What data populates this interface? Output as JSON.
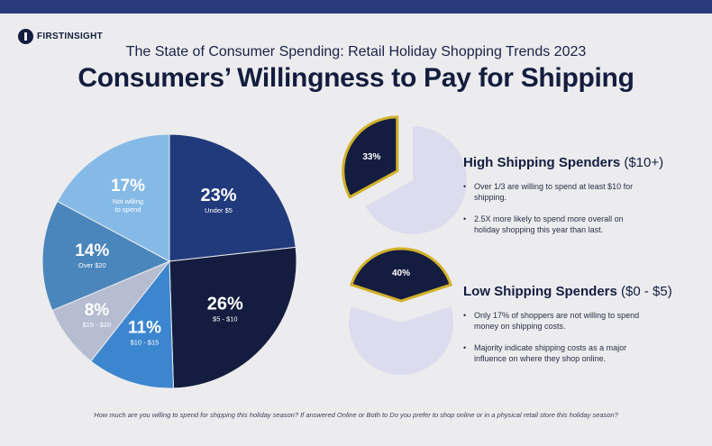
{
  "brand": {
    "name": "FIRSTINSIGHT"
  },
  "header": {
    "subtitle": "The State of Consumer Spending: Retail Holiday Shopping Trends 2023",
    "title": "Consumers’ Willingness to Pay for Shipping"
  },
  "chart_data": [
    {
      "type": "pie",
      "categories": [
        "Under $5",
        "$5 - $10",
        "$10 - $15",
        "$15 - $20",
        "Over $20",
        "Not willing to spend"
      ],
      "values": [
        23,
        26,
        11,
        8,
        14,
        17
      ],
      "labels": [
        "23%",
        "26%",
        "11%",
        "8%",
        "14%",
        "17%"
      ],
      "colors": [
        "#213a7c",
        "#141d3f",
        "#3c86d0",
        "#b6bdd1",
        "#4a86bc",
        "#85bae6"
      ]
    },
    {
      "type": "pie",
      "values": [
        33,
        67
      ],
      "labels": [
        "33%",
        ""
      ],
      "colors": [
        "#141d3f",
        "#dcdcee"
      ],
      "highlight_stroke": "#d2b12a"
    },
    {
      "type": "pie",
      "values": [
        40,
        60
      ],
      "labels": [
        "40%",
        ""
      ],
      "colors": [
        "#141d3f",
        "#dcdcee"
      ],
      "highlight_stroke": "#d2b12a"
    }
  ],
  "sections": {
    "high": {
      "title": "High Shipping Spenders",
      "range": "($10+)",
      "bullets": [
        "Over 1/3 are willing to spend at least $10 for shipping.",
        "2.5X more likely to spend more overall on holiday shopping this year than last."
      ]
    },
    "low": {
      "title": "Low Shipping Spenders",
      "range": "($0 - $5)",
      "bullets": [
        "Only 17% of shoppers are not willing to spend money on shipping costs.",
        "Majority indicate shipping costs as a major influence on where they shop online."
      ]
    }
  },
  "footnote": "How much are you willing to spend for shipping this holiday season? If answered Online or Both to Do you prefer to shop online or in a physical retail store this holiday season?"
}
